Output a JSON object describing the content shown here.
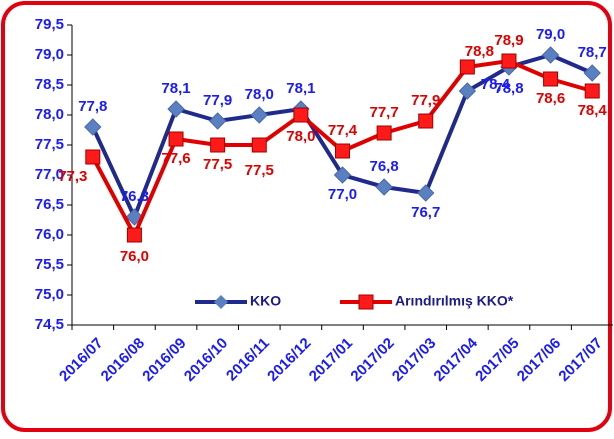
{
  "chart_data": {
    "type": "line",
    "categories": [
      "2016/07",
      "2016/08",
      "2016/09",
      "2016/10",
      "2016/11",
      "2016/12",
      "2017/01",
      "2017/02",
      "2017/03",
      "2017/04",
      "2017/05",
      "2017/06",
      "2017/07"
    ],
    "series": [
      {
        "name": "KKO",
        "color": "#1f2a8c",
        "marker_color": "#5b80c2",
        "values": [
          77.8,
          76.3,
          78.1,
          77.9,
          78.0,
          78.1,
          77.0,
          76.8,
          76.7,
          78.4,
          78.8,
          79.0,
          78.7
        ],
        "value_labels": [
          "77,8",
          "76,3",
          "78,1",
          "77,9",
          "78,0",
          "78,1",
          "77,0",
          "76,8",
          "76,7",
          "78,4",
          "78,8",
          "79,0",
          "78,7"
        ]
      },
      {
        "name": "Arındırılmış KKO*",
        "color": "#e00000",
        "marker_color": "#ff1a1a",
        "values": [
          77.3,
          76.0,
          77.6,
          77.5,
          77.5,
          78.0,
          77.4,
          77.7,
          77.9,
          78.8,
          78.9,
          78.6,
          78.4
        ],
        "value_labels": [
          "77,3",
          "76,0",
          "77,6",
          "77,5",
          "77,5",
          "78,0",
          "77,4",
          "77,7",
          "77,9",
          "78,8",
          "78,9",
          "78,6",
          "78,4"
        ]
      }
    ],
    "ylim": [
      74.5,
      79.5
    ],
    "yticks": [
      {
        "value": 74.5,
        "label": "74,5"
      },
      {
        "value": 75.0,
        "label": "75,0"
      },
      {
        "value": 75.5,
        "label": "75,5"
      },
      {
        "value": 76.0,
        "label": "76,0"
      },
      {
        "value": 76.5,
        "label": "76,5"
      },
      {
        "value": 77.0,
        "label": "77,0"
      },
      {
        "value": 77.5,
        "label": "77,5"
      },
      {
        "value": 78.0,
        "label": "78,0"
      },
      {
        "value": 78.5,
        "label": "78,5"
      },
      {
        "value": 79.0,
        "label": "79,0"
      },
      {
        "value": 79.5,
        "label": "79,5"
      }
    ],
    "legend": "lower center"
  }
}
